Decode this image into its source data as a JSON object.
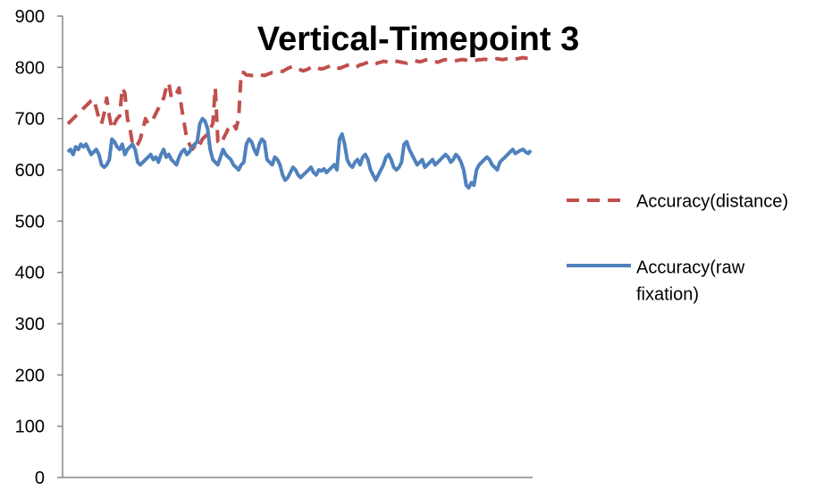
{
  "chart_data": {
    "type": "line",
    "title": "Vertical-Timepoint 3",
    "xlabel": "",
    "ylabel": "",
    "ylim": [
      0,
      900
    ],
    "yticks": [
      0,
      100,
      200,
      300,
      400,
      500,
      600,
      700,
      800,
      900
    ],
    "ytick_labels": [
      "0",
      "100",
      "200",
      "300",
      "400",
      "500",
      "600",
      "700",
      "800",
      "900"
    ],
    "grid": false,
    "legend_position": "right",
    "x": [
      1,
      2,
      3,
      4,
      5,
      6,
      7,
      8,
      9,
      10,
      11,
      12,
      13,
      14,
      15,
      16,
      17,
      18,
      19,
      20,
      21,
      22,
      23,
      24,
      25,
      26,
      27,
      28,
      29,
      30,
      31,
      32,
      33,
      34,
      35,
      36,
      37,
      38,
      39,
      40,
      41,
      42,
      43,
      44,
      45,
      46,
      47,
      48,
      49,
      50,
      51,
      52,
      53,
      54,
      55,
      56,
      57,
      58,
      59,
      60,
      61,
      62,
      63,
      64,
      65,
      66,
      67,
      68,
      69,
      70,
      71,
      72,
      73,
      74,
      75,
      76,
      77,
      78,
      79,
      80,
      81,
      82,
      83,
      84,
      85,
      86,
      87,
      88,
      89,
      90,
      91,
      92,
      93,
      94,
      95,
      96,
      97,
      98,
      99,
      100,
      101,
      102,
      103,
      104,
      105,
      106,
      107,
      108,
      109,
      110,
      111,
      112,
      113,
      114,
      115,
      116,
      117,
      118,
      119,
      120,
      121,
      122,
      123,
      124,
      125,
      126,
      127,
      128,
      129,
      130,
      131,
      132,
      133,
      134,
      135,
      136,
      137,
      138,
      139,
      140,
      141,
      142,
      143,
      144,
      145,
      146,
      147,
      148,
      149,
      150,
      151,
      152,
      153,
      154,
      155,
      156,
      157,
      158,
      159,
      160,
      161,
      162,
      163,
      164,
      165,
      166,
      167,
      168,
      169,
      170,
      171,
      172,
      173,
      174,
      175,
      176,
      177,
      178,
      179,
      180
    ],
    "series": [
      {
        "name": "Accuracy(distance)",
        "color": "#C0504D",
        "dash": true,
        "values": [
          690,
          695,
          700,
          705,
          710,
          715,
          720,
          725,
          730,
          735,
          738,
          720,
          700,
          690,
          710,
          740,
          705,
          680,
          690,
          700,
          705,
          760,
          750,
          700,
          680,
          650,
          645,
          650,
          660,
          680,
          700,
          690,
          695,
          700,
          710,
          720,
          730,
          740,
          760,
          770,
          740,
          745,
          750,
          760,
          720,
          690,
          660,
          650,
          640,
          645,
          640,
          650,
          660,
          665,
          670,
          680,
          690,
          760,
          655,
          650,
          660,
          670,
          680,
          685,
          690,
          680,
          700,
          790,
          790,
          785,
          785,
          784,
          785,
          786,
          787,
          785,
          784,
          786,
          788,
          790,
          790,
          792,
          793,
          792,
          795,
          798,
          800,
          802,
          800,
          798,
          795,
          793,
          795,
          797,
          800,
          802,
          800,
          798,
          797,
          798,
          800,
          802,
          804,
          803,
          800,
          798,
          800,
          802,
          804,
          805,
          803,
          800,
          802,
          805,
          806,
          808,
          810,
          808,
          806,
          807,
          809,
          810,
          812,
          811,
          810,
          812,
          813,
          812,
          811,
          810,
          809,
          808,
          810,
          812,
          813,
          812,
          811,
          812,
          814,
          815,
          813,
          812,
          811,
          810,
          812,
          814,
          815,
          814,
          813,
          812,
          813,
          814,
          815,
          815,
          814,
          813,
          812,
          813,
          814,
          815,
          815,
          816,
          815,
          814,
          815,
          816,
          817,
          816,
          815,
          816,
          817,
          818,
          817,
          816,
          817,
          818,
          819,
          818,
          817,
          818
        ]
      },
      {
        "name": "Accuracy(raw fixation)",
        "color": "#4F81BD",
        "dash": false,
        "values": [
          635,
          640,
          630,
          645,
          640,
          650,
          645,
          650,
          640,
          630,
          635,
          640,
          630,
          610,
          605,
          610,
          620,
          660,
          655,
          645,
          640,
          650,
          630,
          640,
          645,
          650,
          640,
          615,
          610,
          615,
          620,
          625,
          630,
          620,
          625,
          615,
          630,
          640,
          625,
          630,
          620,
          615,
          610,
          625,
          635,
          640,
          630,
          635,
          645,
          650,
          655,
          690,
          700,
          695,
          680,
          640,
          620,
          615,
          610,
          625,
          640,
          630,
          625,
          620,
          610,
          605,
          600,
          610,
          615,
          650,
          660,
          655,
          640,
          630,
          650,
          660,
          655,
          620,
          615,
          610,
          625,
          620,
          610,
          590,
          580,
          585,
          595,
          605,
          600,
          590,
          585,
          590,
          595,
          600,
          605,
          595,
          590,
          600,
          598,
          602,
          595,
          600,
          605,
          610,
          600,
          660,
          670,
          650,
          620,
          610,
          605,
          615,
          620,
          610,
          625,
          630,
          620,
          600,
          590,
          580,
          590,
          600,
          610,
          625,
          630,
          620,
          605,
          600,
          605,
          615,
          650,
          655,
          640,
          630,
          620,
          610,
          615,
          620,
          605,
          610,
          615,
          620,
          610,
          615,
          620,
          625,
          630,
          625,
          615,
          620,
          630,
          625,
          615,
          600,
          570,
          565,
          575,
          570,
          600,
          610,
          615,
          620,
          625,
          620,
          610,
          605,
          600,
          615,
          620,
          625,
          630,
          635,
          640,
          632,
          635,
          638,
          640,
          635,
          632,
          638
        ]
      }
    ],
    "legend": [
      {
        "label_line1": "Accuracy(distance)",
        "label_line2": ""
      },
      {
        "label_line1": "Accuracy(raw",
        "label_line2": "fixation)"
      }
    ]
  }
}
